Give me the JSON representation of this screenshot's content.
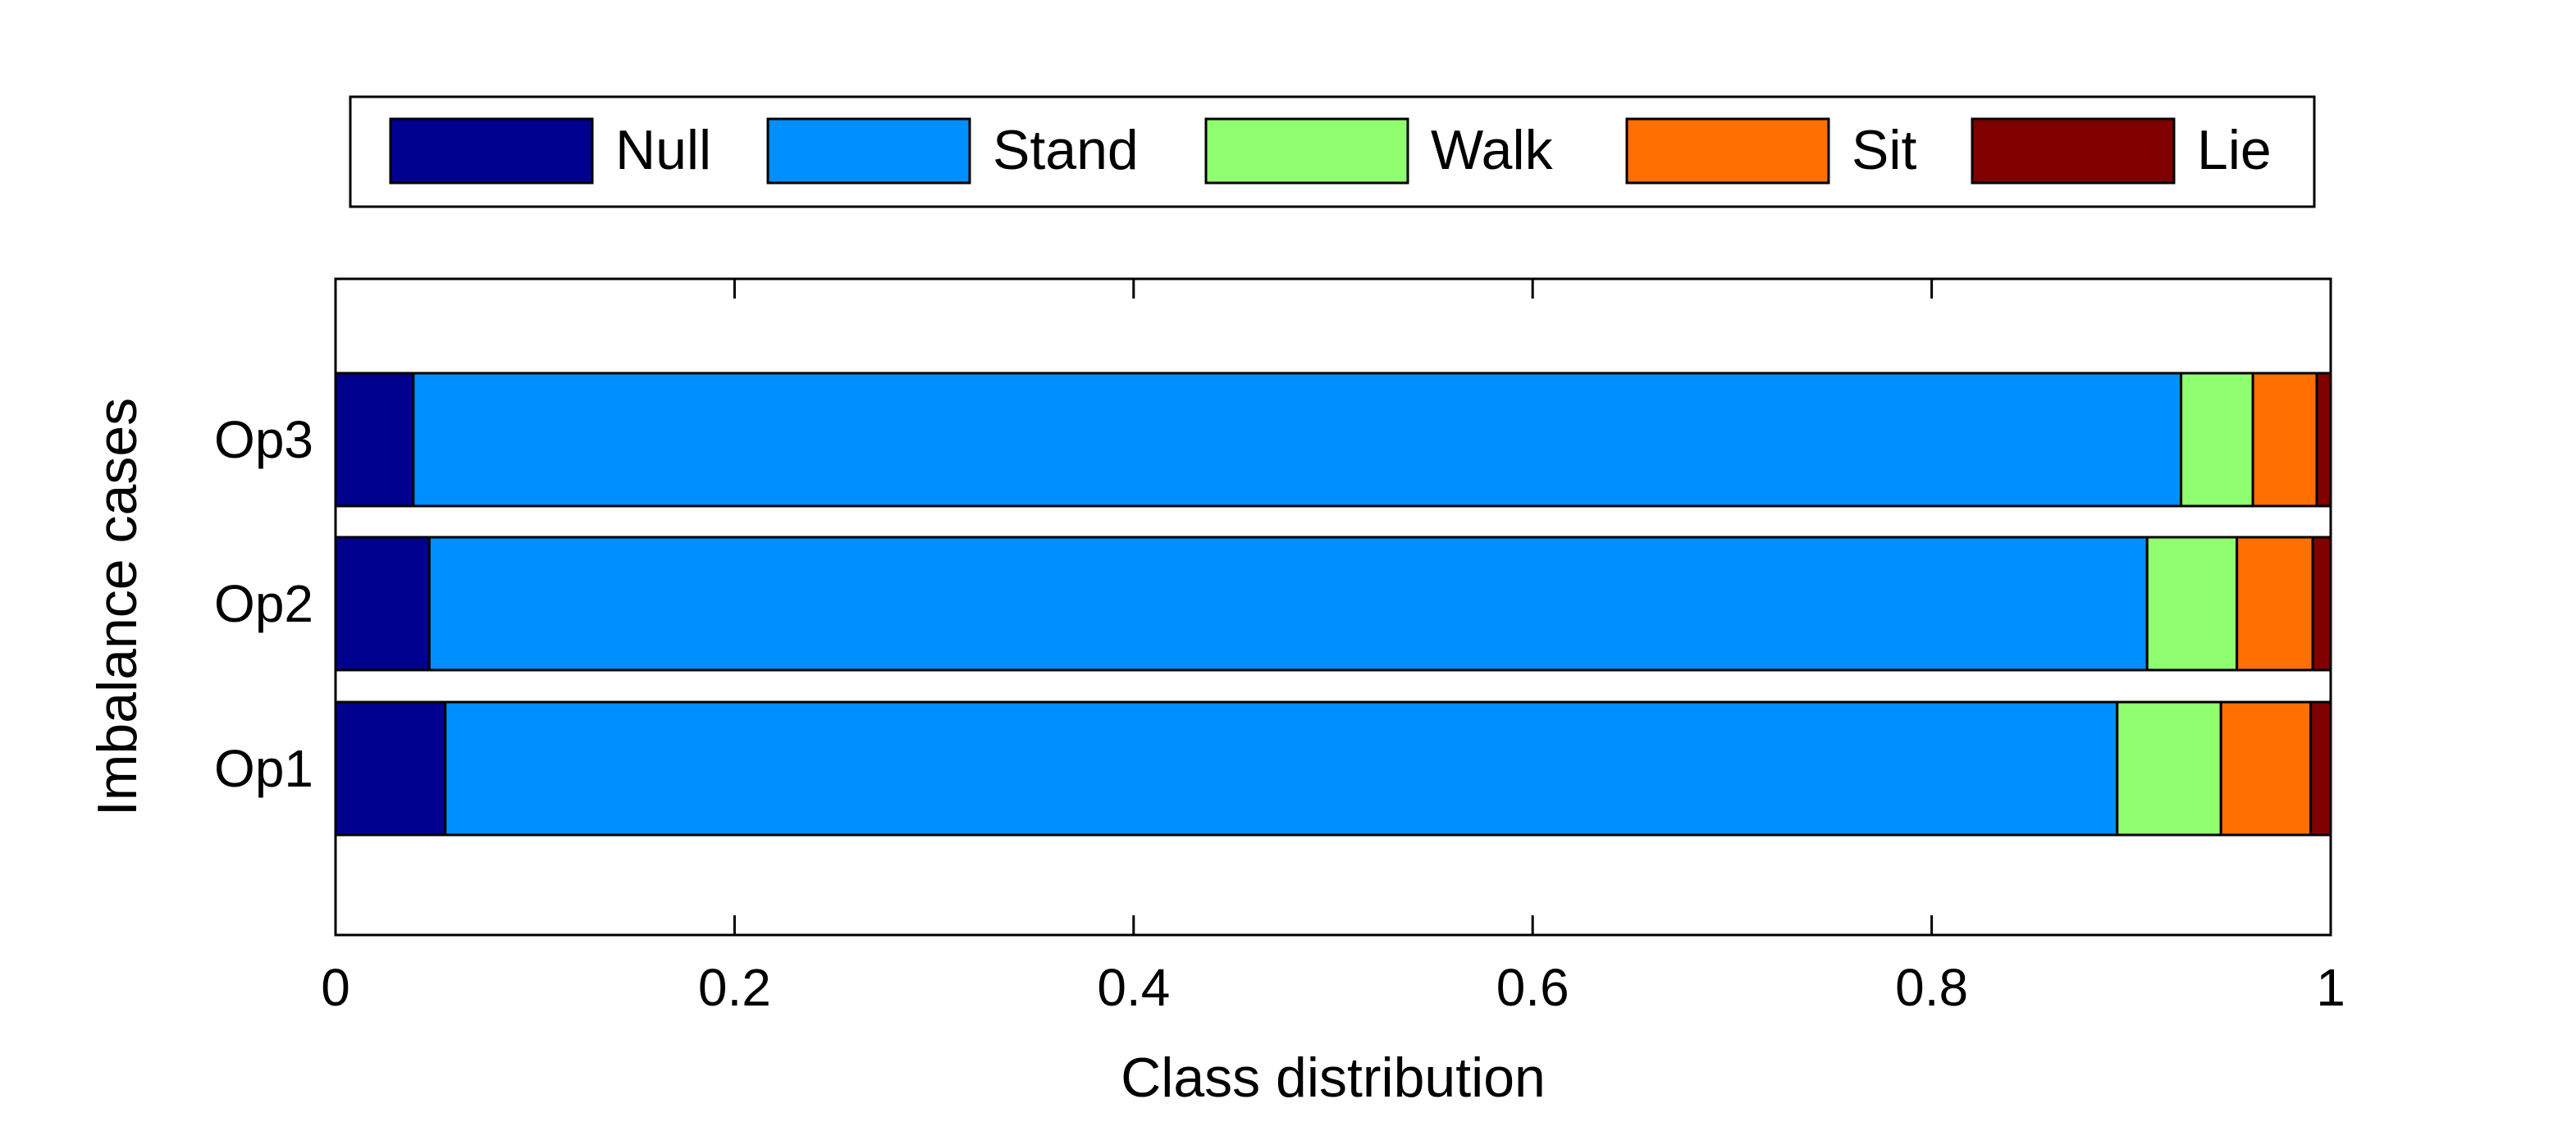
{
  "chart_data": {
    "type": "bar",
    "orientation": "horizontal",
    "stacked": true,
    "categories": [
      "Op1",
      "Op2",
      "Op3"
    ],
    "series": [
      {
        "name": "Null",
        "color": "#00008F",
        "values": [
          0.055,
          0.047,
          0.039
        ]
      },
      {
        "name": "Stand",
        "color": "#008FFF",
        "values": [
          0.838,
          0.861,
          0.886
        ]
      },
      {
        "name": "Walk",
        "color": "#8FFF70",
        "values": [
          0.052,
          0.045,
          0.036
        ]
      },
      {
        "name": "Sit",
        "color": "#FF7000",
        "values": [
          0.045,
          0.038,
          0.032
        ]
      },
      {
        "name": "Lie",
        "color": "#800000",
        "values": [
          0.01,
          0.009,
          0.007
        ]
      }
    ],
    "title": "",
    "xlabel": "Class distribution",
    "ylabel": "Imbalance cases",
    "xlim": [
      0,
      1
    ],
    "xticks": [
      0,
      0.2,
      0.4,
      0.6,
      0.8,
      1
    ],
    "xtick_labels": [
      "0",
      "0.2",
      "0.4",
      "0.6",
      "0.8",
      "1"
    ],
    "grid": false,
    "legend_position": "top-outside-horizontal"
  }
}
